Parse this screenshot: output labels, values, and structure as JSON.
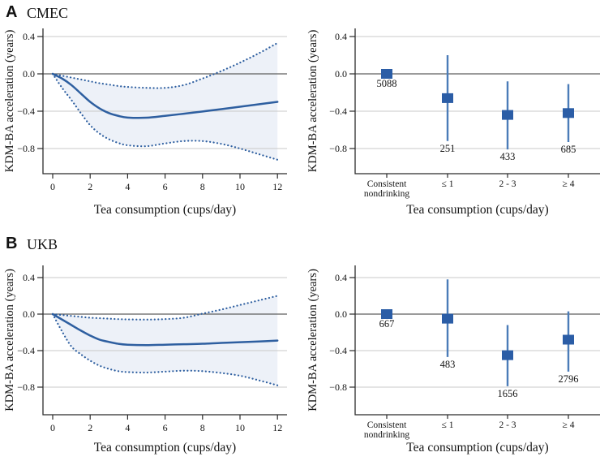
{
  "figure": {
    "panels": [
      {
        "label": "A",
        "title": "CMEC"
      },
      {
        "label": "B",
        "title": "UKB"
      }
    ]
  },
  "colors": {
    "curve_blue": "#2e5fa0",
    "band_fill": "#edf1f8",
    "marker_blue": "#2b5da6",
    "ci_line_blue": "#4b7cb8",
    "zero_line": "#5f5f5f",
    "gridline": "#c9c9c9",
    "axis": "#2b2b2b",
    "text": "#141414"
  },
  "chart_data": [
    {
      "id": "cmec-spline",
      "type": "line",
      "panel": "A",
      "study": "CMEC",
      "xlabel": "Tea consumption (cups/day)",
      "ylabel": "KDM-BA acceleration (years)",
      "xticks": [
        0,
        2,
        4,
        6,
        8,
        10,
        12
      ],
      "yticks": [
        0.4,
        0,
        -0.4,
        -0.8
      ],
      "xlim": [
        0,
        12
      ],
      "ylim": [
        -1.05,
        0.48
      ],
      "grid": "horizontal",
      "legend": "none",
      "x": [
        0,
        0.5,
        1,
        1.5,
        2,
        2.5,
        3,
        3.5,
        4,
        5,
        6,
        7,
        8,
        9,
        10,
        11,
        12
      ],
      "series": [
        {
          "name": "estimate",
          "style": "solid",
          "values": [
            0,
            -0.05,
            -0.12,
            -0.21,
            -0.3,
            -0.37,
            -0.42,
            -0.45,
            -0.468,
            -0.47,
            -0.45,
            -0.427,
            -0.403,
            -0.378,
            -0.352,
            -0.326,
            -0.3
          ]
        },
        {
          "name": "upper-95ci",
          "style": "dotted",
          "values": [
            0,
            -0.02,
            -0.04,
            -0.06,
            -0.08,
            -0.1,
            -0.115,
            -0.13,
            -0.14,
            -0.15,
            -0.15,
            -0.12,
            -0.05,
            0.03,
            0.12,
            0.22,
            0.33
          ]
        },
        {
          "name": "lower-95ci",
          "style": "dotted",
          "values": [
            0,
            -0.15,
            -0.28,
            -0.42,
            -0.55,
            -0.64,
            -0.7,
            -0.74,
            -0.765,
            -0.775,
            -0.745,
            -0.72,
            -0.72,
            -0.75,
            -0.8,
            -0.86,
            -0.92
          ]
        }
      ],
      "band": true
    },
    {
      "id": "cmec-forest",
      "type": "scatter",
      "variant": "forest",
      "panel": "A",
      "study": "CMEC",
      "xlabel": "Tea consumption (cups/day)",
      "ylabel": "KDM-BA acceleration (years)",
      "yticks": [
        0.4,
        0,
        -0.4,
        -0.8
      ],
      "grid": "horizontal",
      "categories": [
        "Consistent\nnondrinking",
        "≤ 1",
        "2 - 3",
        "≥ 4"
      ],
      "points": [
        {
          "n": 5088,
          "estimate": 0,
          "ci_low": null,
          "ci_high": null
        },
        {
          "n": 251,
          "estimate": -0.26,
          "ci_low": -0.72,
          "ci_high": 0.2
        },
        {
          "n": 433,
          "estimate": -0.44,
          "ci_low": -0.81,
          "ci_high": -0.08
        },
        {
          "n": 685,
          "estimate": -0.42,
          "ci_low": -0.73,
          "ci_high": -0.11
        }
      ]
    },
    {
      "id": "ukb-spline",
      "type": "line",
      "panel": "B",
      "study": "UKB",
      "xlabel": "Tea consumption (cups/day)",
      "ylabel": "KDM-BA acceleration (years)",
      "xticks": [
        0,
        2,
        4,
        6,
        8,
        10,
        12
      ],
      "yticks": [
        0.4,
        0,
        -0.4,
        -0.8
      ],
      "xlim": [
        0,
        12
      ],
      "ylim": [
        -1.0,
        0.48
      ],
      "grid": "horizontal",
      "legend": "none",
      "x": [
        0,
        0.5,
        1,
        1.5,
        2,
        2.5,
        3,
        3.5,
        4,
        5,
        6,
        7,
        8,
        9,
        10,
        11,
        12
      ],
      "series": [
        {
          "name": "estimate",
          "style": "solid",
          "values": [
            0,
            -0.06,
            -0.12,
            -0.18,
            -0.235,
            -0.28,
            -0.305,
            -0.325,
            -0.335,
            -0.34,
            -0.335,
            -0.33,
            -0.325,
            -0.315,
            -0.308,
            -0.3,
            -0.29
          ]
        },
        {
          "name": "upper-95ci",
          "style": "dotted",
          "values": [
            0,
            -0.01,
            -0.02,
            -0.03,
            -0.04,
            -0.045,
            -0.05,
            -0.055,
            -0.058,
            -0.06,
            -0.055,
            -0.04,
            0.005,
            0.05,
            0.1,
            0.15,
            0.2
          ]
        },
        {
          "name": "lower-95ci",
          "style": "dotted",
          "values": [
            0,
            -0.19,
            -0.355,
            -0.44,
            -0.51,
            -0.565,
            -0.6,
            -0.625,
            -0.635,
            -0.64,
            -0.63,
            -0.62,
            -0.625,
            -0.645,
            -0.675,
            -0.725,
            -0.78
          ]
        }
      ],
      "band": true
    },
    {
      "id": "ukb-forest",
      "type": "scatter",
      "variant": "forest",
      "panel": "B",
      "study": "UKB",
      "xlabel": "Tea consumption (cups/day)",
      "ylabel": "KDM-BA acceleration (years)",
      "yticks": [
        0.4,
        0,
        -0.4,
        -0.8
      ],
      "grid": "horizontal",
      "categories": [
        "Consistent\nnondrinking",
        "≤ 1",
        "2 - 3",
        "≥ 4"
      ],
      "points": [
        {
          "n": 667,
          "estimate": 0,
          "ci_low": null,
          "ci_high": null
        },
        {
          "n": 483,
          "estimate": -0.05,
          "ci_low": -0.47,
          "ci_high": 0.38
        },
        {
          "n": 1656,
          "estimate": -0.45,
          "ci_low": -0.79,
          "ci_high": -0.12
        },
        {
          "n": 2796,
          "estimate": -0.28,
          "ci_low": -0.63,
          "ci_high": 0.03
        }
      ]
    }
  ]
}
